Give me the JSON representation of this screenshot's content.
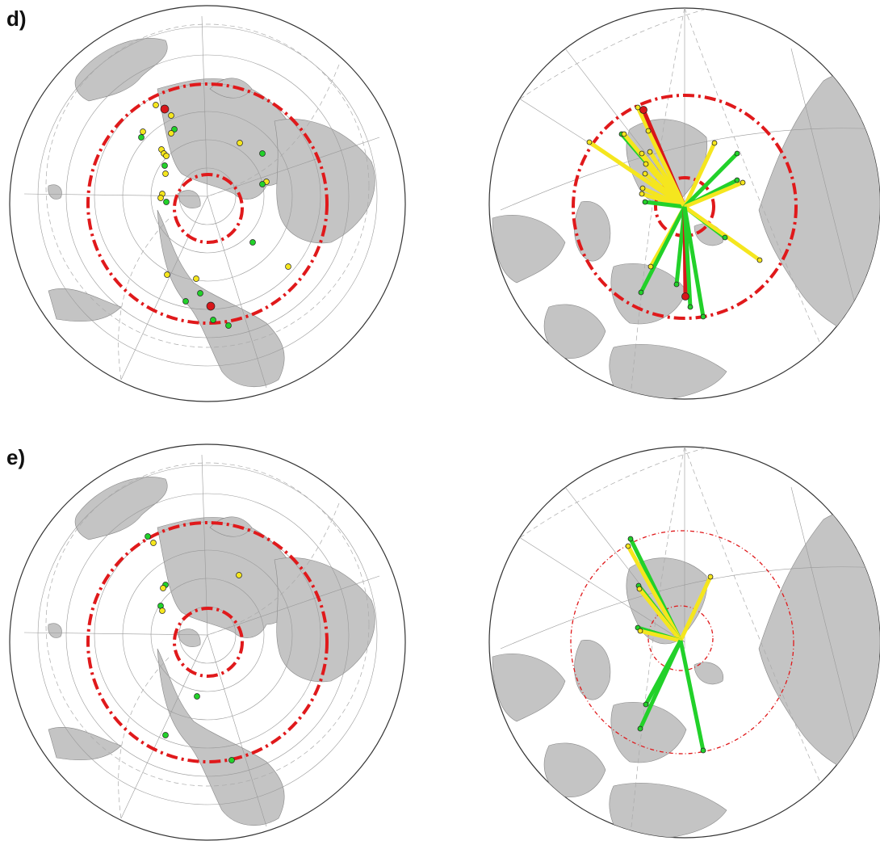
{
  "panels": [
    {
      "label": "d)"
    },
    {
      "label": "e)"
    }
  ]
}
